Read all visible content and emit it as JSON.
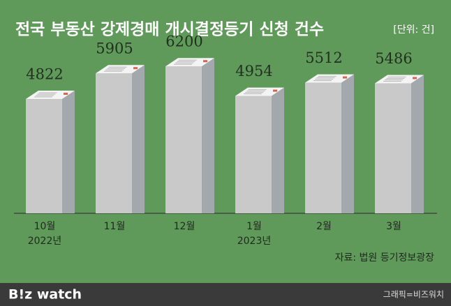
{
  "chart_data": {
    "type": "bar3d",
    "title": "전국 부동산 강제경매 개시결정등기 신청 건수",
    "unit": "[단위: 건]",
    "categories": [
      "10월",
      "11월",
      "12월",
      "1월",
      "2월",
      "3월"
    ],
    "category_years": [
      "2022년",
      null,
      null,
      "2023년",
      null,
      null
    ],
    "values": [
      4822,
      5905,
      6200,
      4954,
      5512,
      5486
    ],
    "color": "#c9c9c9",
    "source": "자료: 법원 등기정보광장"
  },
  "footer": {
    "logo": "B!z watch",
    "credit": "그래픽=비즈워치"
  }
}
